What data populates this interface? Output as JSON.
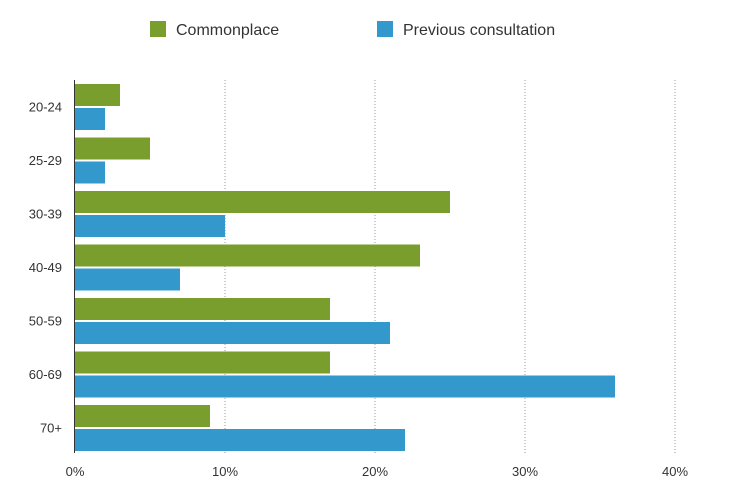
{
  "chart_data": {
    "type": "bar",
    "orientation": "horizontal",
    "categories": [
      "20-24",
      "25-29",
      "30-39",
      "40-49",
      "50-59",
      "60-69",
      "70+"
    ],
    "series": [
      {
        "name": "Commonplace",
        "color": "#7a9e2e",
        "values": [
          3,
          5,
          25,
          23,
          17,
          17,
          9
        ]
      },
      {
        "name": "Previous consultation",
        "color": "#3399cc",
        "values": [
          2,
          2,
          10,
          7,
          21,
          36,
          22
        ]
      }
    ],
    "x_ticks": [
      "0%",
      "10%",
      "20%",
      "30%",
      "40%"
    ],
    "xlim": [
      0,
      40
    ],
    "grid": "vertical dotted",
    "legend_position": "top",
    "title": "",
    "xlabel": "",
    "ylabel": ""
  }
}
